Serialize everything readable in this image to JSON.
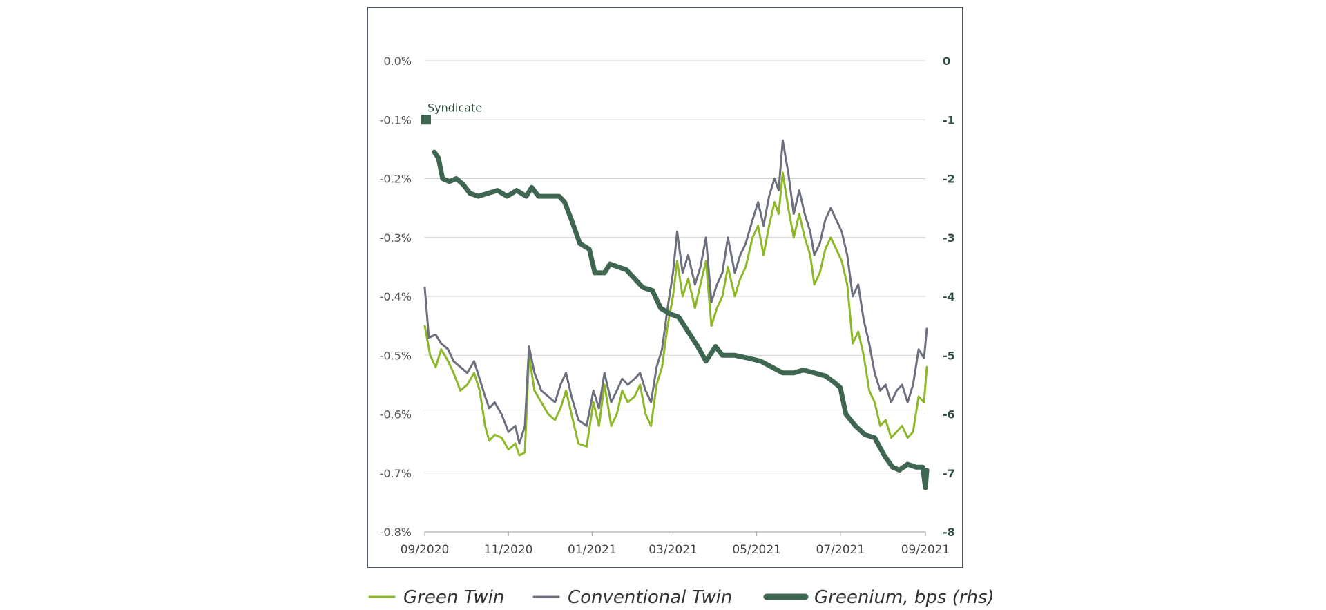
{
  "chart_data": {
    "type": "line",
    "x_ticks": [
      "09/2020",
      "11/2020",
      "01/2021",
      "03/2021",
      "05/2021",
      "07/2021",
      "09/2021"
    ],
    "y_left": {
      "ticks": [
        "0.0%",
        "-0.1%",
        "-0.2%",
        "-0.3%",
        "-0.4%",
        "-0.5%",
        "-0.6%",
        "-0.7%",
        "-0.8%"
      ],
      "range": [
        -0.8,
        0.0
      ]
    },
    "y_right": {
      "ticks": [
        "0",
        "-1",
        "-2",
        "-3",
        "-4",
        "-5",
        "-6",
        "-7",
        "-8"
      ],
      "range": [
        -8,
        0
      ]
    },
    "grid": "horizontal",
    "legend_position": "bottom",
    "annotation": {
      "label": "Syndicate",
      "date": "2020-09-02",
      "value": -0.1,
      "color": "#3f6650"
    },
    "series": [
      {
        "name": "Green Twin",
        "axis": "left",
        "color": "#8cb82a",
        "points": [
          [
            "2020-09-01",
            -0.45
          ],
          [
            "2020-09-05",
            -0.5
          ],
          [
            "2020-09-09",
            -0.52
          ],
          [
            "2020-09-13",
            -0.49
          ],
          [
            "2020-09-18",
            -0.51
          ],
          [
            "2020-09-22",
            -0.53
          ],
          [
            "2020-09-27",
            -0.56
          ],
          [
            "2020-10-02",
            -0.55
          ],
          [
            "2020-10-07",
            -0.53
          ],
          [
            "2020-10-11",
            -0.56
          ],
          [
            "2020-10-15",
            -0.62
          ],
          [
            "2020-10-18",
            -0.645
          ],
          [
            "2020-10-22",
            -0.635
          ],
          [
            "2020-10-27",
            -0.64
          ],
          [
            "2020-11-01",
            -0.66
          ],
          [
            "2020-11-06",
            -0.65
          ],
          [
            "2020-11-09",
            -0.67
          ],
          [
            "2020-11-13",
            -0.665
          ],
          [
            "2020-11-16",
            -0.5
          ],
          [
            "2020-11-20",
            -0.56
          ],
          [
            "2020-11-25",
            -0.58
          ],
          [
            "2020-11-30",
            -0.6
          ],
          [
            "2020-12-05",
            -0.61
          ],
          [
            "2020-12-09",
            -0.59
          ],
          [
            "2020-12-13",
            -0.56
          ],
          [
            "2020-12-17",
            -0.6
          ],
          [
            "2020-12-22",
            -0.65
          ],
          [
            "2020-12-28",
            -0.655
          ],
          [
            "2021-01-02",
            -0.58
          ],
          [
            "2021-01-06",
            -0.62
          ],
          [
            "2021-01-10",
            -0.55
          ],
          [
            "2021-01-15",
            -0.62
          ],
          [
            "2021-01-19",
            -0.6
          ],
          [
            "2021-01-23",
            -0.56
          ],
          [
            "2021-01-27",
            -0.58
          ],
          [
            "2021-02-01",
            -0.57
          ],
          [
            "2021-02-05",
            -0.55
          ],
          [
            "2021-02-09",
            -0.6
          ],
          [
            "2021-02-13",
            -0.62
          ],
          [
            "2021-02-17",
            -0.55
          ],
          [
            "2021-02-21",
            -0.52
          ],
          [
            "2021-02-25",
            -0.45
          ],
          [
            "2021-03-01",
            -0.4
          ],
          [
            "2021-03-04",
            -0.34
          ],
          [
            "2021-03-08",
            -0.4
          ],
          [
            "2021-03-12",
            -0.37
          ],
          [
            "2021-03-17",
            -0.42
          ],
          [
            "2021-03-21",
            -0.38
          ],
          [
            "2021-03-25",
            -0.34
          ],
          [
            "2021-03-29",
            -0.45
          ],
          [
            "2021-04-02",
            -0.42
          ],
          [
            "2021-04-06",
            -0.4
          ],
          [
            "2021-04-10",
            -0.35
          ],
          [
            "2021-04-15",
            -0.4
          ],
          [
            "2021-04-19",
            -0.37
          ],
          [
            "2021-04-23",
            -0.35
          ],
          [
            "2021-04-28",
            -0.3
          ],
          [
            "2021-05-02",
            -0.28
          ],
          [
            "2021-05-06",
            -0.33
          ],
          [
            "2021-05-10",
            -0.28
          ],
          [
            "2021-05-14",
            -0.24
          ],
          [
            "2021-05-17",
            -0.26
          ],
          [
            "2021-05-20",
            -0.19
          ],
          [
            "2021-05-24",
            -0.25
          ],
          [
            "2021-05-28",
            -0.3
          ],
          [
            "2021-06-01",
            -0.26
          ],
          [
            "2021-06-05",
            -0.3
          ],
          [
            "2021-06-09",
            -0.33
          ],
          [
            "2021-06-12",
            -0.38
          ],
          [
            "2021-06-16",
            -0.36
          ],
          [
            "2021-06-20",
            -0.32
          ],
          [
            "2021-06-24",
            -0.3
          ],
          [
            "2021-06-28",
            -0.32
          ],
          [
            "2021-07-02",
            -0.34
          ],
          [
            "2021-07-06",
            -0.38
          ],
          [
            "2021-07-10",
            -0.48
          ],
          [
            "2021-07-14",
            -0.46
          ],
          [
            "2021-07-18",
            -0.5
          ],
          [
            "2021-07-22",
            -0.56
          ],
          [
            "2021-07-26",
            -0.58
          ],
          [
            "2021-07-30",
            -0.62
          ],
          [
            "2021-08-03",
            -0.61
          ],
          [
            "2021-08-07",
            -0.64
          ],
          [
            "2021-08-11",
            -0.63
          ],
          [
            "2021-08-15",
            -0.62
          ],
          [
            "2021-08-19",
            -0.64
          ],
          [
            "2021-08-23",
            -0.63
          ],
          [
            "2021-08-27",
            -0.57
          ],
          [
            "2021-08-31",
            -0.58
          ],
          [
            "2021-09-02",
            -0.52
          ]
        ]
      },
      {
        "name": "Conventional Twin",
        "axis": "left",
        "color": "#6b6f7e",
        "points": [
          [
            "2020-09-01",
            -0.385
          ],
          [
            "2020-09-04",
            -0.47
          ],
          [
            "2020-09-09",
            -0.465
          ],
          [
            "2020-09-13",
            -0.48
          ],
          [
            "2020-09-18",
            -0.49
          ],
          [
            "2020-09-22",
            -0.51
          ],
          [
            "2020-09-27",
            -0.52
          ],
          [
            "2020-10-02",
            -0.53
          ],
          [
            "2020-10-07",
            -0.51
          ],
          [
            "2020-10-11",
            -0.54
          ],
          [
            "2020-10-15",
            -0.57
          ],
          [
            "2020-10-18",
            -0.59
          ],
          [
            "2020-10-22",
            -0.58
          ],
          [
            "2020-10-27",
            -0.6
          ],
          [
            "2020-11-01",
            -0.63
          ],
          [
            "2020-11-06",
            -0.62
          ],
          [
            "2020-11-09",
            -0.65
          ],
          [
            "2020-11-13",
            -0.62
          ],
          [
            "2020-11-16",
            -0.485
          ],
          [
            "2020-11-20",
            -0.53
          ],
          [
            "2020-11-25",
            -0.56
          ],
          [
            "2020-11-30",
            -0.57
          ],
          [
            "2020-12-05",
            -0.58
          ],
          [
            "2020-12-09",
            -0.55
          ],
          [
            "2020-12-13",
            -0.53
          ],
          [
            "2020-12-17",
            -0.57
          ],
          [
            "2020-12-22",
            -0.61
          ],
          [
            "2020-12-28",
            -0.62
          ],
          [
            "2021-01-02",
            -0.56
          ],
          [
            "2021-01-06",
            -0.59
          ],
          [
            "2021-01-10",
            -0.53
          ],
          [
            "2021-01-15",
            -0.58
          ],
          [
            "2021-01-19",
            -0.56
          ],
          [
            "2021-01-23",
            -0.54
          ],
          [
            "2021-01-27",
            -0.55
          ],
          [
            "2021-02-01",
            -0.54
          ],
          [
            "2021-02-05",
            -0.53
          ],
          [
            "2021-02-09",
            -0.56
          ],
          [
            "2021-02-13",
            -0.58
          ],
          [
            "2021-02-17",
            -0.52
          ],
          [
            "2021-02-21",
            -0.49
          ],
          [
            "2021-02-25",
            -0.42
          ],
          [
            "2021-03-01",
            -0.36
          ],
          [
            "2021-03-04",
            -0.29
          ],
          [
            "2021-03-08",
            -0.36
          ],
          [
            "2021-03-12",
            -0.33
          ],
          [
            "2021-03-17",
            -0.38
          ],
          [
            "2021-03-21",
            -0.35
          ],
          [
            "2021-03-25",
            -0.3
          ],
          [
            "2021-03-29",
            -0.41
          ],
          [
            "2021-04-02",
            -0.38
          ],
          [
            "2021-04-06",
            -0.36
          ],
          [
            "2021-04-10",
            -0.3
          ],
          [
            "2021-04-15",
            -0.36
          ],
          [
            "2021-04-19",
            -0.33
          ],
          [
            "2021-04-23",
            -0.31
          ],
          [
            "2021-04-28",
            -0.27
          ],
          [
            "2021-05-02",
            -0.24
          ],
          [
            "2021-05-06",
            -0.28
          ],
          [
            "2021-05-10",
            -0.23
          ],
          [
            "2021-05-14",
            -0.2
          ],
          [
            "2021-05-17",
            -0.22
          ],
          [
            "2021-05-20",
            -0.135
          ],
          [
            "2021-05-24",
            -0.19
          ],
          [
            "2021-05-28",
            -0.26
          ],
          [
            "2021-06-01",
            -0.22
          ],
          [
            "2021-06-05",
            -0.26
          ],
          [
            "2021-06-09",
            -0.29
          ],
          [
            "2021-06-12",
            -0.33
          ],
          [
            "2021-06-16",
            -0.31
          ],
          [
            "2021-06-20",
            -0.27
          ],
          [
            "2021-06-24",
            -0.25
          ],
          [
            "2021-06-28",
            -0.27
          ],
          [
            "2021-07-02",
            -0.29
          ],
          [
            "2021-07-06",
            -0.33
          ],
          [
            "2021-07-10",
            -0.4
          ],
          [
            "2021-07-14",
            -0.38
          ],
          [
            "2021-07-18",
            -0.44
          ],
          [
            "2021-07-22",
            -0.48
          ],
          [
            "2021-07-26",
            -0.53
          ],
          [
            "2021-07-30",
            -0.56
          ],
          [
            "2021-08-03",
            -0.55
          ],
          [
            "2021-08-07",
            -0.58
          ],
          [
            "2021-08-11",
            -0.56
          ],
          [
            "2021-08-15",
            -0.55
          ],
          [
            "2021-08-19",
            -0.58
          ],
          [
            "2021-08-23",
            -0.55
          ],
          [
            "2021-08-27",
            -0.49
          ],
          [
            "2021-08-31",
            -0.505
          ],
          [
            "2021-09-02",
            -0.455
          ]
        ]
      },
      {
        "name": "Greenium, bps (rhs)",
        "axis": "right",
        "color": "#3f6650",
        "points": [
          [
            "2020-09-08",
            -1.55
          ],
          [
            "2020-09-11",
            -1.65
          ],
          [
            "2020-09-14",
            -2.0
          ],
          [
            "2020-09-19",
            -2.05
          ],
          [
            "2020-09-24",
            -2.0
          ],
          [
            "2020-09-29",
            -2.1
          ],
          [
            "2020-10-04",
            -2.25
          ],
          [
            "2020-10-10",
            -2.3
          ],
          [
            "2020-10-17",
            -2.25
          ],
          [
            "2020-10-24",
            -2.2
          ],
          [
            "2020-10-31",
            -2.3
          ],
          [
            "2020-11-07",
            -2.2
          ],
          [
            "2020-11-14",
            -2.3
          ],
          [
            "2020-11-18",
            -2.15
          ],
          [
            "2020-11-23",
            -2.3
          ],
          [
            "2020-12-01",
            -2.3
          ],
          [
            "2020-12-08",
            -2.3
          ],
          [
            "2020-12-12",
            -2.4
          ],
          [
            "2020-12-17",
            -2.7
          ],
          [
            "2020-12-23",
            -3.1
          ],
          [
            "2020-12-30",
            -3.2
          ],
          [
            "2021-01-03",
            -3.6
          ],
          [
            "2021-01-10",
            -3.6
          ],
          [
            "2021-01-14",
            -3.45
          ],
          [
            "2021-01-20",
            -3.5
          ],
          [
            "2021-01-26",
            -3.55
          ],
          [
            "2021-02-01",
            -3.7
          ],
          [
            "2021-02-07",
            -3.85
          ],
          [
            "2021-02-14",
            -3.9
          ],
          [
            "2021-02-20",
            -4.2
          ],
          [
            "2021-02-27",
            -4.3
          ],
          [
            "2021-03-05",
            -4.35
          ],
          [
            "2021-03-12",
            -4.6
          ],
          [
            "2021-03-19",
            -4.85
          ],
          [
            "2021-03-25",
            -5.1
          ],
          [
            "2021-04-01",
            -4.85
          ],
          [
            "2021-04-06",
            -5.0
          ],
          [
            "2021-04-15",
            -5.0
          ],
          [
            "2021-04-25",
            -5.05
          ],
          [
            "2021-05-04",
            -5.1
          ],
          [
            "2021-05-12",
            -5.2
          ],
          [
            "2021-05-20",
            -5.3
          ],
          [
            "2021-05-28",
            -5.3
          ],
          [
            "2021-06-04",
            -5.25
          ],
          [
            "2021-06-12",
            -5.3
          ],
          [
            "2021-06-20",
            -5.35
          ],
          [
            "2021-06-26",
            -5.45
          ],
          [
            "2021-07-01",
            -5.55
          ],
          [
            "2021-07-05",
            -6.0
          ],
          [
            "2021-07-12",
            -6.2
          ],
          [
            "2021-07-19",
            -6.35
          ],
          [
            "2021-07-26",
            -6.4
          ],
          [
            "2021-08-02",
            -6.7
          ],
          [
            "2021-08-08",
            -6.9
          ],
          [
            "2021-08-13",
            -6.95
          ],
          [
            "2021-08-19",
            -6.85
          ],
          [
            "2021-08-25",
            -6.9
          ],
          [
            "2021-08-30",
            -6.9
          ],
          [
            "2021-09-01",
            -7.25
          ],
          [
            "2021-09-02",
            -6.95
          ]
        ]
      }
    ]
  }
}
